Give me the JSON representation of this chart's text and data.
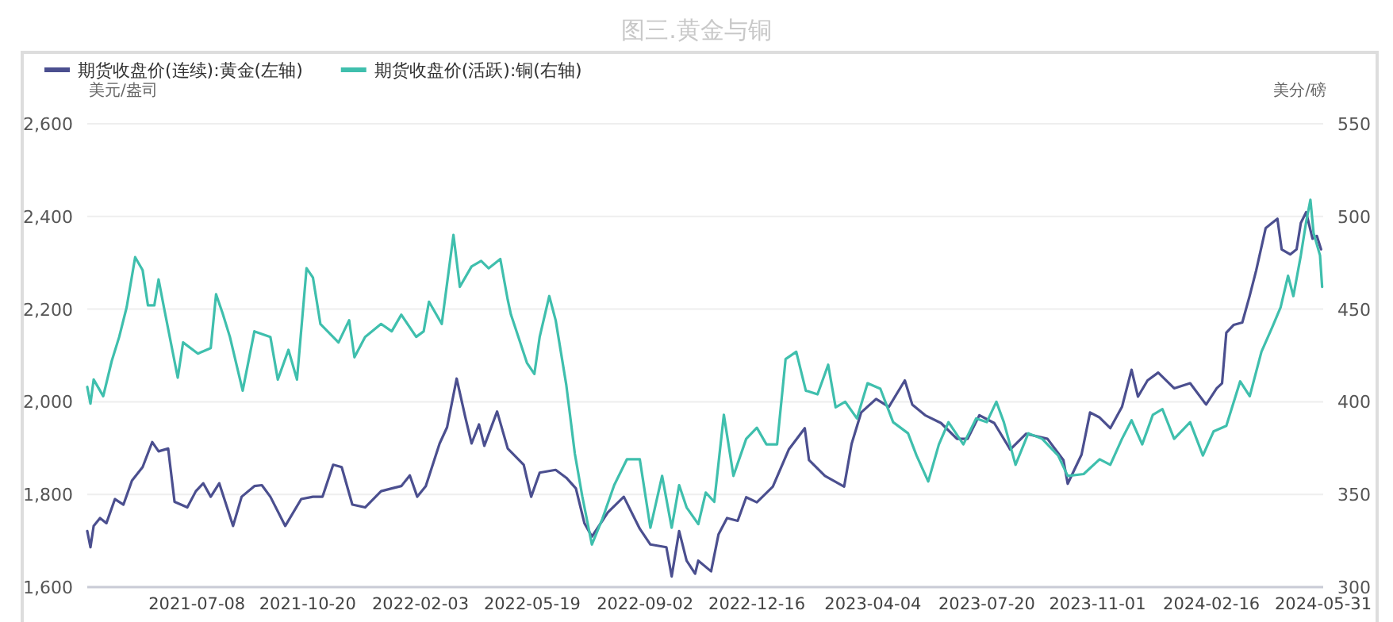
{
  "chart_data": {
    "type": "line",
    "title": "图三.黄金与铜",
    "ylabel": "美元/盎司",
    "y2label": "美分/磅",
    "legend": "top left",
    "grid": "y",
    "xlim": [
      "2021-03-27",
      "2024-05-31"
    ],
    "xticks": [
      "2021-07-08",
      "2021-10-20",
      "2022-02-03",
      "2022-05-19",
      "2022-09-02",
      "2022-12-16",
      "2023-04-04",
      "2023-07-20",
      "2023-11-01",
      "2024-02-16",
      "2024-05-31"
    ],
    "ylim": [
      1600,
      2600
    ],
    "yticks": [
      {
        "value": 1600,
        "label": "1,600"
      },
      {
        "value": 1800,
        "label": "1,800"
      },
      {
        "value": 2000,
        "label": "2,000"
      },
      {
        "value": 2200,
        "label": "2,200"
      },
      {
        "value": 2400,
        "label": "2,400"
      },
      {
        "value": 2600,
        "label": "2,600"
      }
    ],
    "y2lim": [
      300,
      550
    ],
    "y2ticks": [
      300,
      350,
      400,
      450,
      500,
      550
    ],
    "series": [
      {
        "name": "期货收盘价(连续):黄金(左轴)",
        "color": "#4b4f8f",
        "x": [
          "2021-03-27",
          "2021-03-30",
          "2021-04-02",
          "2021-04-08",
          "2021-04-14",
          "2021-04-22",
          "2021-04-30",
          "2021-05-08",
          "2021-05-18",
          "2021-05-27",
          "2021-06-02",
          "2021-06-11",
          "2021-06-17",
          "2021-06-29",
          "2021-07-07",
          "2021-07-14",
          "2021-07-21",
          "2021-07-29",
          "2021-08-11",
          "2021-08-19",
          "2021-08-31",
          "2021-09-07",
          "2021-09-15",
          "2021-09-29",
          "2021-10-14",
          "2021-10-25",
          "2021-11-03",
          "2021-11-13",
          "2021-11-21",
          "2021-12-01",
          "2021-12-13",
          "2021-12-28",
          "2022-01-07",
          "2022-01-16",
          "2022-01-24",
          "2022-01-31",
          "2022-02-08",
          "2022-02-21",
          "2022-02-28",
          "2022-03-09",
          "2022-03-17",
          "2022-03-23",
          "2022-03-30",
          "2022-04-04",
          "2022-04-16",
          "2022-04-26",
          "2022-05-11",
          "2022-05-18",
          "2022-05-26",
          "2022-06-10",
          "2022-06-20",
          "2022-06-29",
          "2022-07-07",
          "2022-07-14",
          "2022-07-29",
          "2022-08-13",
          "2022-08-28",
          "2022-09-07",
          "2022-09-22",
          "2022-09-27",
          "2022-10-04",
          "2022-10-11",
          "2022-10-19",
          "2022-10-22",
          "2022-11-03",
          "2022-11-10",
          "2022-11-18",
          "2022-11-28",
          "2022-12-06",
          "2022-12-16",
          "2022-12-31",
          "2023-01-15",
          "2023-01-30",
          "2023-02-03",
          "2023-02-18",
          "2023-03-08",
          "2023-03-15",
          "2023-03-24",
          "2023-04-07",
          "2023-04-19",
          "2023-05-04",
          "2023-05-11",
          "2023-05-23",
          "2023-06-07",
          "2023-06-22",
          "2023-07-02",
          "2023-07-13",
          "2023-07-27",
          "2023-08-11",
          "2023-08-26",
          "2023-09-15",
          "2023-09-30",
          "2023-10-04",
          "2023-10-17",
          "2023-10-25",
          "2023-11-03",
          "2023-11-13",
          "2023-11-24",
          "2023-12-03",
          "2023-12-09",
          "2023-12-18",
          "2023-12-28",
          "2024-01-12",
          "2024-01-27",
          "2024-02-11",
          "2024-02-21",
          "2024-02-26",
          "2024-03-01",
          "2024-03-08",
          "2024-03-16",
          "2024-03-23",
          "2024-03-29",
          "2024-04-07",
          "2024-04-13",
          "2024-04-18",
          "2024-04-22",
          "2024-04-30",
          "2024-05-06",
          "2024-05-10",
          "2024-05-15",
          "2024-05-21",
          "2024-05-25",
          "2024-05-29"
        ],
        "values": [
          1721,
          1686,
          1732,
          1749,
          1738,
          1790,
          1778,
          1830,
          1859,
          1913,
          1893,
          1899,
          1784,
          1772,
          1807,
          1824,
          1795,
          1824,
          1732,
          1795,
          1818,
          1820,
          1795,
          1732,
          1790,
          1795,
          1795,
          1864,
          1859,
          1778,
          1772,
          1807,
          1813,
          1818,
          1841,
          1795,
          1818,
          1910,
          1945,
          2050,
          1968,
          1910,
          1951,
          1905,
          1979,
          1899,
          1864,
          1795,
          1847,
          1853,
          1836,
          1813,
          1738,
          1709,
          1761,
          1795,
          1726,
          1692,
          1686,
          1623,
          1721,
          1657,
          1629,
          1657,
          1634,
          1714,
          1749,
          1743,
          1794,
          1783,
          1817,
          1897,
          1943,
          1874,
          1840,
          1817,
          1909,
          1977,
          2006,
          1989,
          2046,
          1994,
          1971,
          1954,
          1920,
          1920,
          1971,
          1954,
          1897,
          1931,
          1920,
          1874,
          1823,
          1886,
          1977,
          1966,
          1943,
          1989,
          2069,
          2011,
          2046,
          2063,
          2029,
          2040,
          1994,
          2029,
          2040,
          2149,
          2166,
          2171,
          2229,
          2283,
          2375,
          2386,
          2395,
          2329,
          2318,
          2329,
          2386,
          2409,
          2352,
          2358,
          2329
        ]
      },
      {
        "name": "期货收盘价(活跃):铜(右轴)",
        "color": "#3fbfad",
        "axis": "y2",
        "x": [
          "2021-03-27",
          "2021-03-30",
          "2021-04-02",
          "2021-04-11",
          "2021-04-19",
          "2021-04-26",
          "2021-05-03",
          "2021-05-11",
          "2021-05-18",
          "2021-05-23",
          "2021-05-29",
          "2021-06-02",
          "2021-06-07",
          "2021-06-20",
          "2021-06-25",
          "2021-07-09",
          "2021-07-21",
          "2021-07-26",
          "2021-08-01",
          "2021-08-08",
          "2021-08-20",
          "2021-08-31",
          "2021-09-15",
          "2021-09-22",
          "2021-10-02",
          "2021-10-10",
          "2021-10-19",
          "2021-10-25",
          "2021-11-01",
          "2021-11-18",
          "2021-11-28",
          "2021-12-03",
          "2021-12-13",
          "2021-12-28",
          "2022-01-07",
          "2022-01-16",
          "2022-01-30",
          "2022-02-06",
          "2022-02-11",
          "2022-02-23",
          "2022-03-06",
          "2022-03-12",
          "2022-03-23",
          "2022-04-01",
          "2022-04-08",
          "2022-04-19",
          "2022-04-26",
          "2022-04-29",
          "2022-05-06",
          "2022-05-14",
          "2022-05-21",
          "2022-05-26",
          "2022-06-04",
          "2022-06-10",
          "2022-06-20",
          "2022-06-28",
          "2022-07-05",
          "2022-07-14",
          "2022-07-24",
          "2022-08-04",
          "2022-08-16",
          "2022-08-28",
          "2022-09-07",
          "2022-09-18",
          "2022-09-27",
          "2022-10-04",
          "2022-10-11",
          "2022-10-22",
          "2022-10-29",
          "2022-11-06",
          "2022-11-15",
          "2022-11-24",
          "2022-12-06",
          "2022-12-16",
          "2022-12-25",
          "2023-01-04",
          "2023-01-12",
          "2023-01-22",
          "2023-01-31",
          "2023-02-11",
          "2023-02-21",
          "2023-02-28",
          "2023-03-09",
          "2023-03-20",
          "2023-03-30",
          "2023-04-11",
          "2023-04-23",
          "2023-05-07",
          "2023-05-15",
          "2023-05-26",
          "2023-06-05",
          "2023-06-14",
          "2023-06-28",
          "2023-07-10",
          "2023-07-20",
          "2023-07-29",
          "2023-08-05",
          "2023-08-16",
          "2023-08-28",
          "2023-09-10",
          "2023-09-25",
          "2023-10-04",
          "2023-10-19",
          "2023-11-03",
          "2023-11-13",
          "2023-11-24",
          "2023-12-03",
          "2023-12-13",
          "2023-12-23",
          "2024-01-01",
          "2024-01-12",
          "2024-01-27",
          "2024-02-08",
          "2024-02-18",
          "2024-03-01",
          "2024-03-14",
          "2024-03-23",
          "2024-04-03",
          "2024-04-13",
          "2024-04-21",
          "2024-04-28",
          "2024-05-03",
          "2024-05-10",
          "2024-05-15",
          "2024-05-19",
          "2024-05-22",
          "2024-05-28",
          "2024-05-30"
        ],
        "values": [
          408,
          399,
          412,
          403,
          422,
          435,
          451,
          478,
          471,
          452,
          452,
          466,
          451,
          413,
          432,
          426,
          429,
          458,
          448,
          435,
          406,
          438,
          435,
          412,
          428,
          412,
          472,
          467,
          442,
          432,
          444,
          424,
          435,
          442,
          438,
          447,
          435,
          438,
          454,
          442,
          490,
          462,
          473,
          476,
          472,
          477,
          455,
          447,
          435,
          421,
          415,
          435,
          457,
          444,
          409,
          372,
          349,
          323,
          337,
          355,
          369,
          369,
          332,
          360,
          332,
          355,
          343,
          334,
          351,
          346,
          393,
          360,
          380,
          386,
          377,
          377,
          423,
          427,
          406,
          404,
          420,
          397,
          400,
          391,
          410,
          407,
          389,
          383,
          371,
          357,
          377,
          389,
          377,
          391,
          389,
          400,
          389,
          366,
          383,
          380,
          371,
          360,
          361,
          369,
          366,
          380,
          390,
          377,
          393,
          396,
          380,
          389,
          371,
          384,
          387,
          411,
          403,
          427,
          440,
          451,
          468,
          457,
          479,
          497,
          509,
          491,
          479,
          462
        ]
      }
    ]
  }
}
